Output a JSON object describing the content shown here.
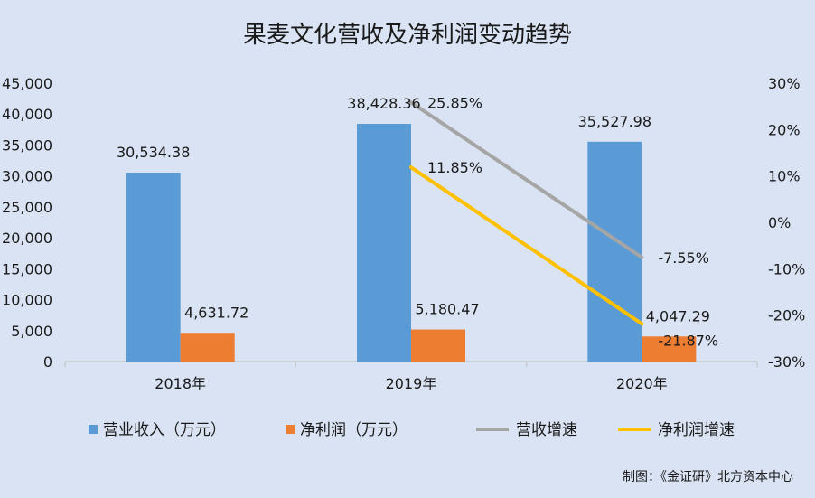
{
  "chart_data": {
    "type": "bar",
    "title": "果麦文化营收及净利润变动趋势",
    "categories": [
      "2018年",
      "2019年",
      "2020年"
    ],
    "y_left": {
      "min": 0,
      "max": 45000,
      "ticks": [
        "0",
        "5,000",
        "10,000",
        "15,000",
        "20,000",
        "25,000",
        "30,000",
        "35,000",
        "40,000",
        "45,000"
      ]
    },
    "y_right": {
      "min": -30,
      "max": 30,
      "ticks": [
        "-30%",
        "-20%",
        "-10%",
        "0%",
        "10%",
        "20%",
        "30%"
      ]
    },
    "series": [
      {
        "name": "营业收入（万元）",
        "kind": "bar",
        "axis": "left",
        "color": "#5b9bd5",
        "values": [
          30534.38,
          38428.36,
          35527.98
        ],
        "labels": [
          "30,534.38",
          "38,428.36",
          "35,527.98"
        ]
      },
      {
        "name": "净利润（万元）",
        "kind": "bar",
        "axis": "left",
        "color": "#ed7d31",
        "values": [
          4631.72,
          5180.47,
          4047.29
        ],
        "labels": [
          "4,631.72",
          "5,180.47",
          "4,047.29"
        ]
      },
      {
        "name": "营收增速",
        "kind": "line",
        "axis": "right",
        "color": "#a5a5a5",
        "values": [
          null,
          25.85,
          -7.55
        ],
        "labels": [
          "",
          "25.85%",
          "-7.55%"
        ]
      },
      {
        "name": "净利润增速",
        "kind": "line",
        "axis": "right",
        "color": "#ffc000",
        "values": [
          null,
          11.85,
          -21.87
        ],
        "labels": [
          "",
          "11.85%",
          "-21.87%"
        ]
      }
    ],
    "legend_position": "bottom",
    "gridlines": false
  },
  "source_note": "制图：《金证研》北方资本中心"
}
